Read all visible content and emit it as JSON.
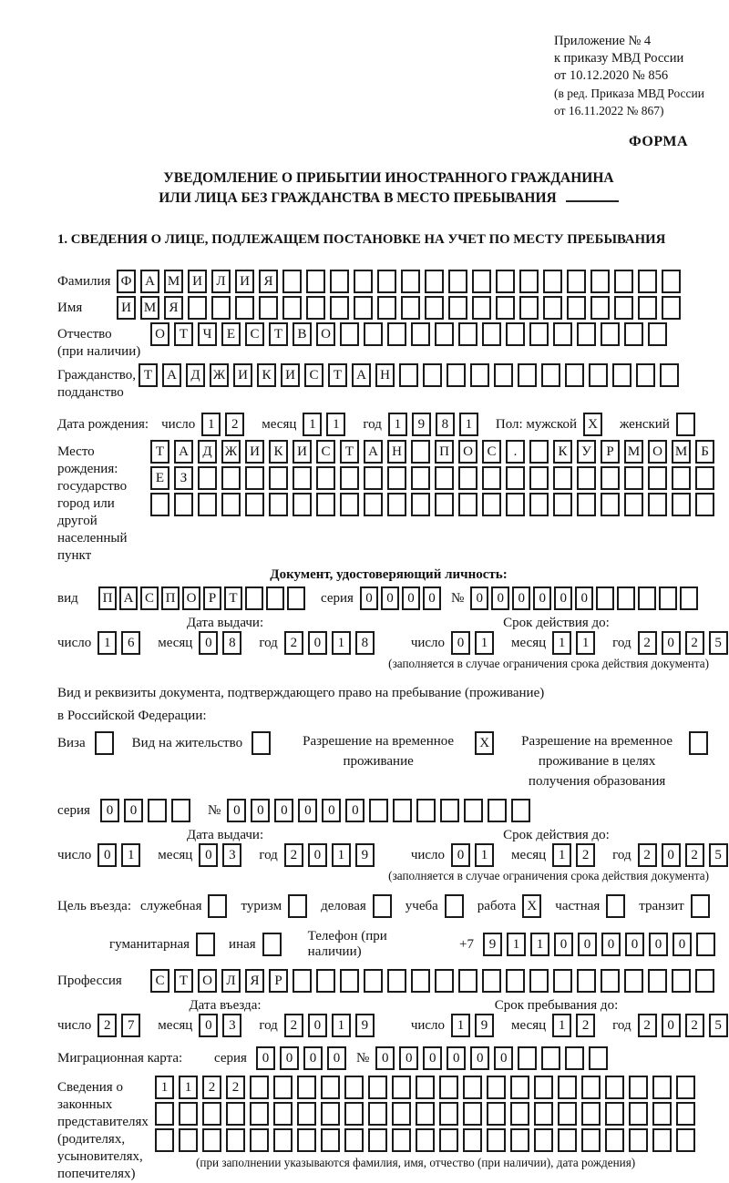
{
  "labels": {
    "day": "число",
    "month": "месяц",
    "year": "год",
    "series": "серия",
    "number": "№"
  },
  "header": {
    "line1": "Приложение № 4",
    "line2": "к приказу МВД России",
    "line3": "от 10.12.2020 № 856",
    "line4": "(в ред. Приказа МВД России",
    "line5": "от 16.11.2022 № 867)",
    "forma": "ФОРМА"
  },
  "title": {
    "line1": "УВЕДОМЛЕНИЕ О ПРИБЫТИИ ИНОСТРАННОГО ГРАЖДАНИНА",
    "line2": "ИЛИ ЛИЦА БЕЗ ГРАЖДАНСТВА В МЕСТО ПРЕБЫВАНИЯ"
  },
  "section1": {
    "heading": "1. СВЕДЕНИЯ О ЛИЦЕ, ПОДЛЕЖАЩЕМ ПОСТАНОВКЕ НА УЧЕТ ПО МЕСТУ ПРЕБЫВАНИЯ",
    "surname": {
      "label": "Фамилия",
      "cells": {
        "count": 24,
        "value": "ФАМИЛИЯ"
      }
    },
    "firstname": {
      "label": "Имя",
      "cells": {
        "count": 24,
        "value": "ИМЯ"
      }
    },
    "patronymic": {
      "label1": "Отчество",
      "label2": "(при наличии)",
      "cells": {
        "count": 22,
        "value": "ОТЧЕСТВО"
      }
    },
    "citizenship": {
      "label1": "Гражданство,",
      "label2": "подданство",
      "cells": {
        "count": 23,
        "value": "ТАДЖИКИСТАН"
      }
    },
    "birth_date": {
      "label": "Дата рождения:",
      "day": "12",
      "month": "11",
      "year": "1981",
      "sex_label": "Пол: мужской",
      "male_checked": "X",
      "female_label": "женский",
      "female_checked": ""
    },
    "birth_place": {
      "label1": "Место рождения:",
      "label2": "государство",
      "label3": "город или другой",
      "label4": "населенный пункт",
      "row1": {
        "count": 24,
        "value": "ТАДЖИКИСТАН ПОС. КУРМОМБ"
      },
      "row2": {
        "count": 24,
        "value": "ЕЗ"
      },
      "row3": {
        "count": 24,
        "value": ""
      }
    },
    "identity_doc": {
      "heading": "Документ, удостоверяющий личность:",
      "type_label": "вид",
      "type_cells": {
        "count": 10,
        "value": "ПАСПОРТ"
      },
      "series_cells": {
        "count": 4,
        "value": "0000"
      },
      "number_cells": {
        "count": 11,
        "value": "000000"
      },
      "issue_heading": "Дата выдачи:",
      "issue_day": "16",
      "issue_month": "08",
      "issue_year": "2018",
      "valid_heading": "Срок действия до:",
      "valid_day": "01",
      "valid_month": "11",
      "valid_year": "2025",
      "note": "(заполняется в случае ограничения срока действия документа)"
    },
    "residence_doc": {
      "intro1": "Вид и реквизиты документа, подтверждающего право на пребывание (проживание)",
      "intro2": "в Российской Федерации:",
      "opt1_label": "Виза",
      "opt1_checked": "",
      "opt2_label": "Вид на жительство",
      "opt2_checked": "",
      "opt3_label": "Разрешение на временное проживание",
      "opt3_checked": "X",
      "opt4_label": "Разрешение на временное проживание в целях получения образования",
      "opt4_checked": "",
      "series_cells": {
        "count": 4,
        "value": "00"
      },
      "number_cells": {
        "count": 13,
        "value": "000000"
      },
      "issue_heading": "Дата выдачи:",
      "issue_day": "01",
      "issue_month": "03",
      "issue_year": "2019",
      "valid_heading": "Срок действия до:",
      "valid_day": "01",
      "valid_month": "12",
      "valid_year": "2025",
      "note": "(заполняется в случае ограничения срока действия документа)"
    },
    "purpose": {
      "label": "Цель въезда:",
      "opts1": [
        {
          "label": "служебная",
          "checked": ""
        },
        {
          "label": "туризм",
          "checked": ""
        },
        {
          "label": "деловая",
          "checked": ""
        },
        {
          "label": "учеба",
          "checked": ""
        },
        {
          "label": "работа",
          "checked": "X"
        },
        {
          "label": "частная",
          "checked": ""
        },
        {
          "label": "транзит",
          "checked": ""
        }
      ],
      "opts2": [
        {
          "label": "гуманитарная",
          "checked": ""
        },
        {
          "label": "иная",
          "checked": ""
        }
      ],
      "phone_label": "Телефон (при наличии)",
      "phone_prefix": "+7",
      "phone_cells": {
        "count": 10,
        "value": "911000000"
      }
    },
    "profession": {
      "label": "Профессия",
      "cells": {
        "count": 24,
        "value": "СТОЛЯР"
      }
    },
    "entry_date": {
      "heading": "Дата въезда:",
      "day": "27",
      "month": "03",
      "year": "2019"
    },
    "stay_until": {
      "heading": "Срок пребывания до:",
      "day": "19",
      "month": "12",
      "year": "2025"
    },
    "migration_card": {
      "label": "Миграционная карта:",
      "series_cells": {
        "count": 4,
        "value": "0000"
      },
      "number_cells": {
        "count": 10,
        "value": "000000"
      }
    },
    "representatives": {
      "label1": "Сведения о",
      "label2": "законных",
      "label3": "представителях",
      "label4": "(родителях,",
      "label5": "усыновителях,",
      "label6": "попечителях)",
      "row1": {
        "count": 23,
        "value": "1122"
      },
      "row2": {
        "count": 23,
        "value": ""
      },
      "row3": {
        "count": 23,
        "value": ""
      },
      "note": "(при заполнении указываются фамилия, имя, отчество (при наличии), дата рождения)"
    }
  }
}
